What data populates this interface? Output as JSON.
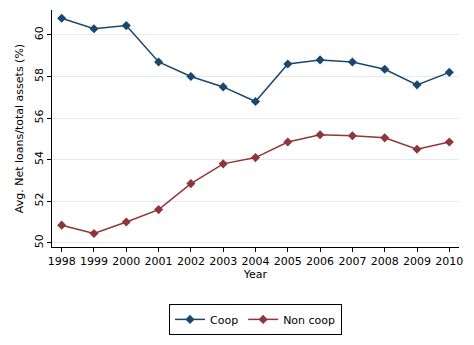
{
  "chart_data": {
    "type": "line",
    "x_label": "Year",
    "y_label": "Avg. Net loans/total assets (%)",
    "x": [
      1998,
      1999,
      2000,
      2001,
      2002,
      2003,
      2004,
      2005,
      2006,
      2007,
      2008,
      2009,
      2010
    ],
    "series": [
      {
        "name": "Coop",
        "color": "#1a476f",
        "marker": "diamond",
        "values": [
          60.8,
          60.3,
          60.45,
          58.7,
          58.0,
          57.5,
          56.8,
          58.6,
          58.8,
          58.7,
          58.35,
          57.6,
          58.2
        ]
      },
      {
        "name": "Non coop",
        "color": "#90353b",
        "marker": "diamond",
        "values": [
          50.85,
          50.45,
          51.0,
          51.6,
          52.85,
          53.8,
          54.1,
          54.85,
          55.2,
          55.15,
          55.05,
          54.5,
          54.85
        ]
      }
    ],
    "xlim": [
      1997.7,
      2010.3
    ],
    "xticks": [
      1998,
      1999,
      2000,
      2001,
      2002,
      2003,
      2004,
      2005,
      2006,
      2007,
      2008,
      2009,
      2010
    ],
    "ylim": [
      49.8,
      61.2
    ],
    "yticks": [
      50,
      52,
      54,
      56,
      58,
      60
    ],
    "grid": true,
    "legend": "bottom"
  }
}
